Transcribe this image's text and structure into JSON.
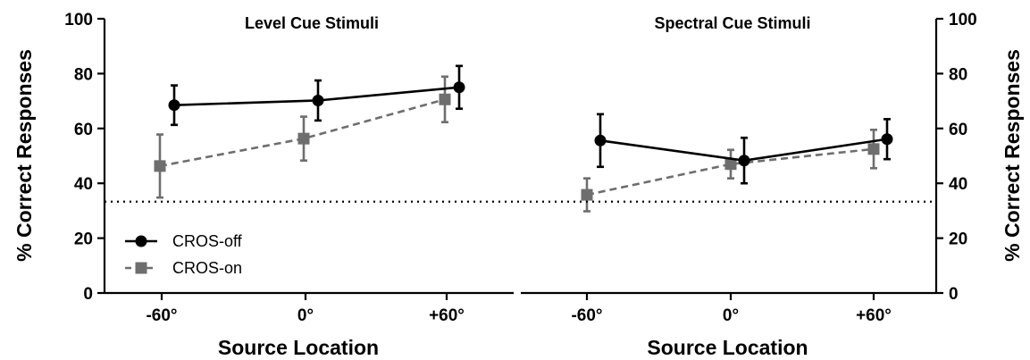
{
  "chart_data": [
    {
      "type": "line",
      "title": "Level  Cue Stimuli",
      "xlabel": "Source Location",
      "ylabel": "% Correct Responses",
      "categories": [
        "-60°",
        "0°",
        "+60°"
      ],
      "ylim": [
        0,
        100
      ],
      "yticks": [
        "0",
        "20",
        "40",
        "60",
        "80",
        "100"
      ],
      "chance_level": 33.3,
      "grid": false,
      "legend_position": "bottom-left",
      "series": [
        {
          "name": "CROS-off",
          "color": "#000000",
          "marker": "circle",
          "line": "solid",
          "values": [
            68.5,
            70.2,
            75.0
          ],
          "error": [
            7.2,
            7.3,
            7.8
          ]
        },
        {
          "name": "CROS-on",
          "color": "#6e6e6e",
          "marker": "square",
          "line": "dashed",
          "values": [
            46.3,
            56.3,
            70.6
          ],
          "error": [
            11.5,
            8.0,
            8.3
          ]
        }
      ]
    },
    {
      "type": "line",
      "title": "Spectral Cue Stimuli",
      "xlabel": "Source Location",
      "ylabel": "% Correct Responses",
      "categories": [
        "-60°",
        "0°",
        "+60°"
      ],
      "ylim": [
        0,
        100
      ],
      "yticks": [
        "0",
        "20",
        "40",
        "60",
        "80",
        "100"
      ],
      "chance_level": 33.3,
      "grid": false,
      "series": [
        {
          "name": "CROS-off",
          "color": "#000000",
          "marker": "circle",
          "line": "solid",
          "values": [
            55.6,
            48.3,
            56.1
          ],
          "error": [
            9.6,
            8.3,
            7.3
          ]
        },
        {
          "name": "CROS-on",
          "color": "#6e6e6e",
          "marker": "square",
          "line": "dashed",
          "values": [
            35.8,
            47.0,
            52.5
          ],
          "error": [
            6.0,
            5.2,
            7.0
          ]
        }
      ]
    }
  ]
}
